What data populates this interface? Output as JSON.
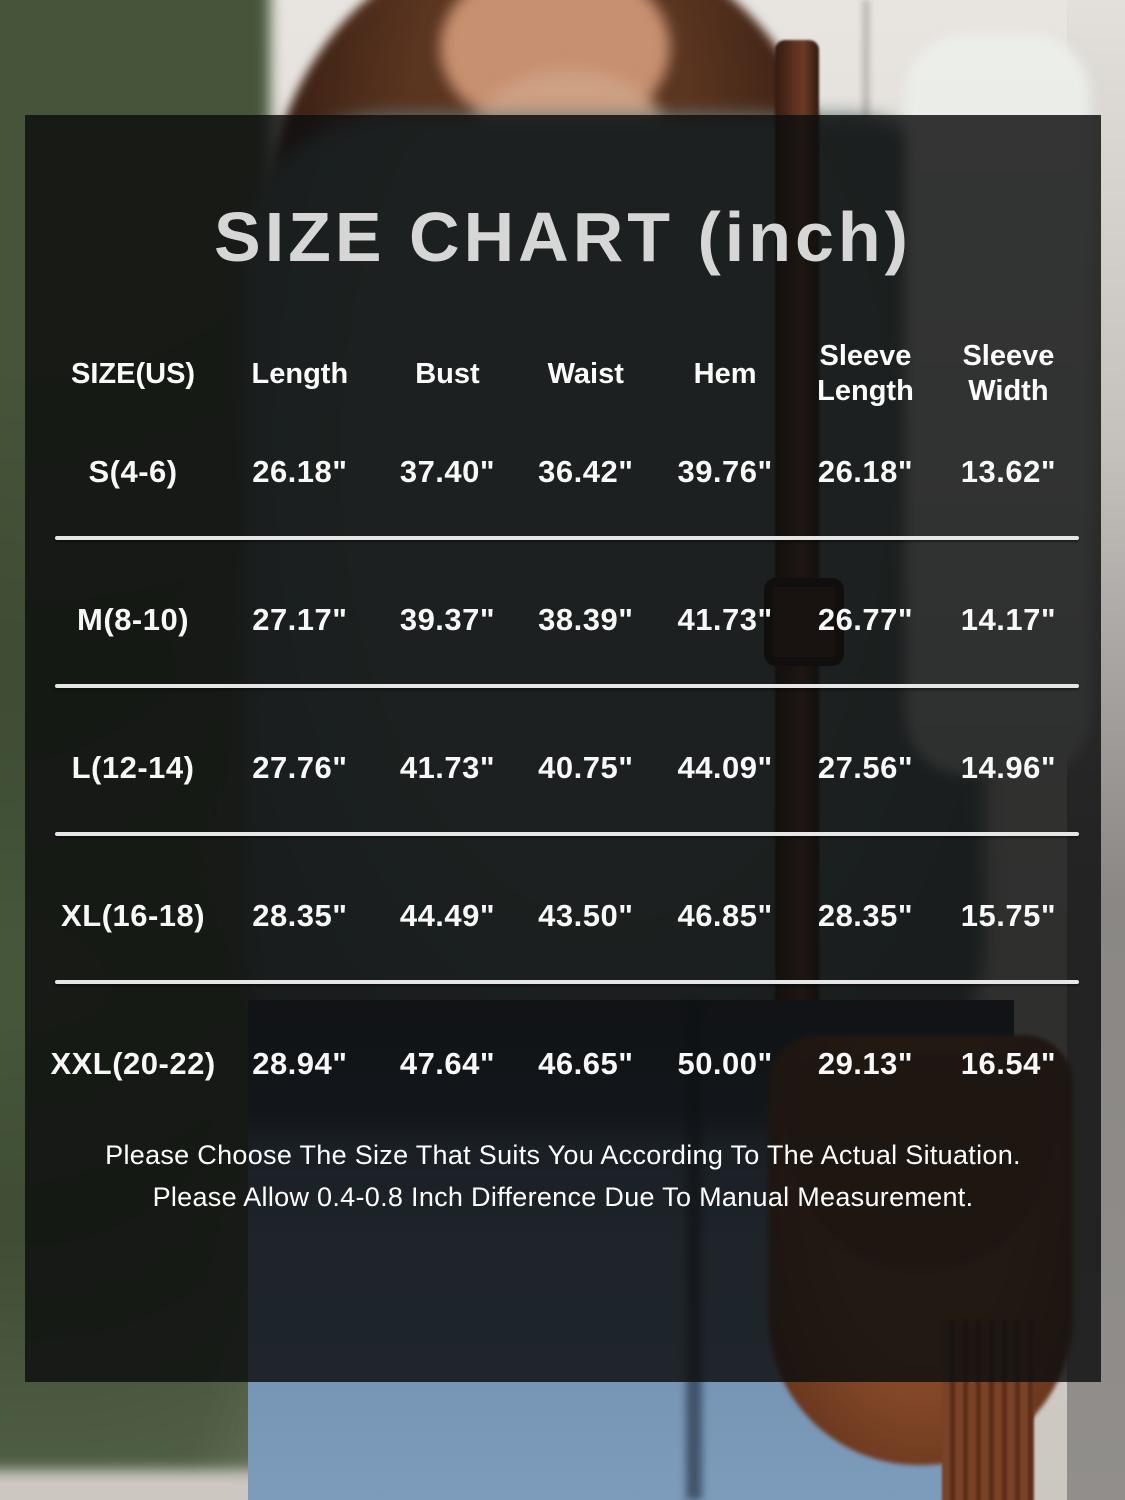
{
  "title": "SIZE CHART (inch)",
  "table": {
    "headers": [
      "SIZE(US)",
      "Length",
      "Bust",
      "Waist",
      "Hem",
      "Sleeve Length",
      "Sleeve Width"
    ],
    "rows": [
      {
        "size": "S(4-6)",
        "values": [
          "26.18\"",
          "37.40\"",
          "36.42\"",
          "39.76\"",
          "26.18\"",
          "13.62\""
        ]
      },
      {
        "size": "M(8-10)",
        "values": [
          "27.17\"",
          "39.37\"",
          "38.39\"",
          "41.73\"",
          "26.77\"",
          "14.17\""
        ]
      },
      {
        "size": "L(12-14)",
        "values": [
          "27.76\"",
          "41.73\"",
          "40.75\"",
          "44.09\"",
          "27.56\"",
          "14.96\""
        ]
      },
      {
        "size": "XL(16-18)",
        "values": [
          "28.35\"",
          "44.49\"",
          "43.50\"",
          "46.85\"",
          "28.35\"",
          "15.75\""
        ]
      },
      {
        "size": "XXL(20-22)",
        "values": [
          "28.94\"",
          "47.64\"",
          "46.65\"",
          "50.00\"",
          "29.13\"",
          "16.54\""
        ]
      }
    ]
  },
  "footer": {
    "line1": "Please Choose The Size That Suits You According To The Actual Situation.",
    "line2": "Please Allow 0.4-0.8 Inch Difference Due To Manual Measurement."
  },
  "colors": {
    "overlay": "rgba(13,14,15,0.83)",
    "title_text": "#d6d6d6",
    "table_text": "#f8f8f8",
    "divider": "#e6e6e6"
  },
  "chart_data": {
    "type": "table",
    "title": "SIZE CHART (inch)",
    "unit": "inch",
    "columns": [
      "SIZE(US)",
      "Length",
      "Bust",
      "Waist",
      "Hem",
      "Sleeve Length",
      "Sleeve Width"
    ],
    "rows": [
      [
        "S(4-6)",
        26.18,
        37.4,
        36.42,
        39.76,
        26.18,
        13.62
      ],
      [
        "M(8-10)",
        27.17,
        39.37,
        38.39,
        41.73,
        26.77,
        14.17
      ],
      [
        "L(12-14)",
        27.76,
        41.73,
        40.75,
        44.09,
        27.56,
        14.96
      ],
      [
        "XL(16-18)",
        28.35,
        44.49,
        43.5,
        46.85,
        28.35,
        15.75
      ],
      [
        "XXL(20-22)",
        28.94,
        47.64,
        46.65,
        50.0,
        29.13,
        16.54
      ]
    ],
    "notes": [
      "Please Choose The Size That Suits You According To The Actual Situation.",
      "Please Allow 0.4-0.8 Inch Difference Due To Manual Measurement."
    ]
  }
}
